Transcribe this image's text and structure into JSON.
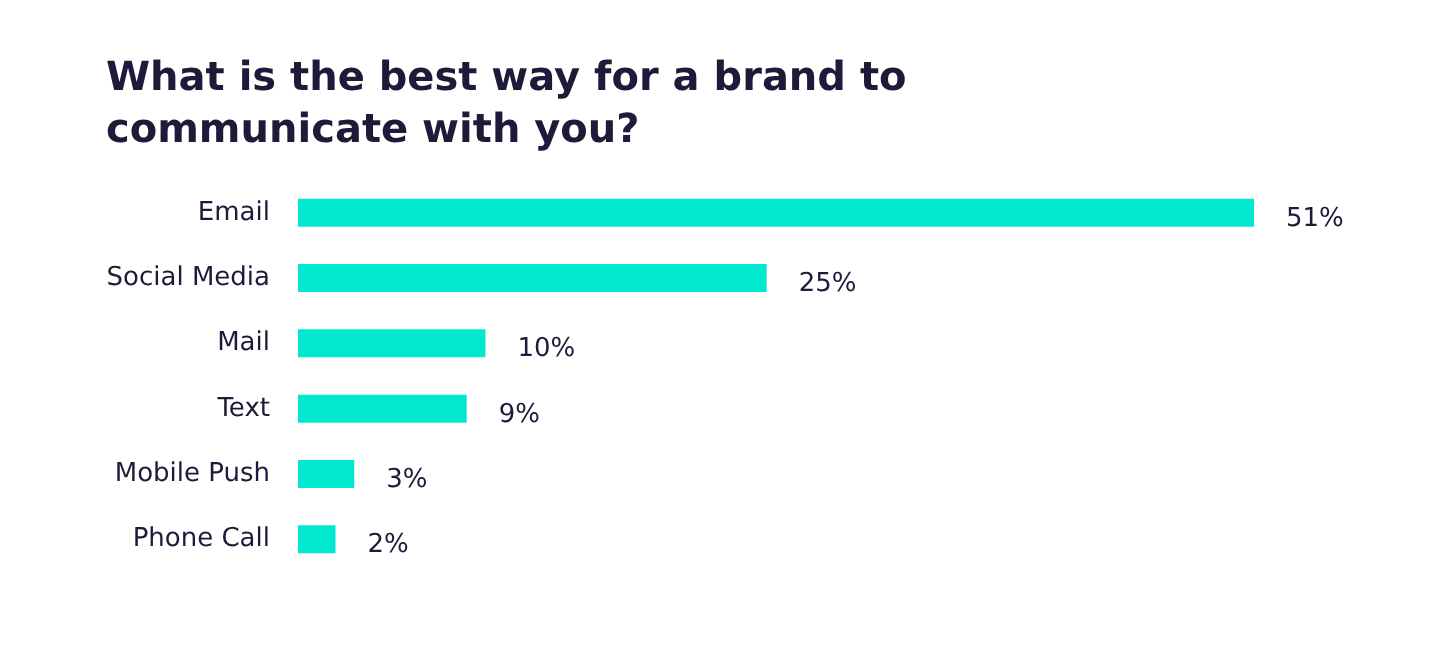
{
  "chart_data": {
    "type": "bar",
    "orientation": "horizontal",
    "title": "What is the best way for a brand to communicate with you?",
    "categories": [
      "Email",
      "Social Media",
      "Mail",
      "Text",
      "Mobile Push",
      "Phone Call"
    ],
    "values": [
      51,
      25,
      10,
      9,
      3,
      2
    ],
    "value_labels": [
      "51%",
      "25%",
      "10%",
      "9%",
      "3%",
      "2%"
    ],
    "color": "#00e8cf"
  }
}
